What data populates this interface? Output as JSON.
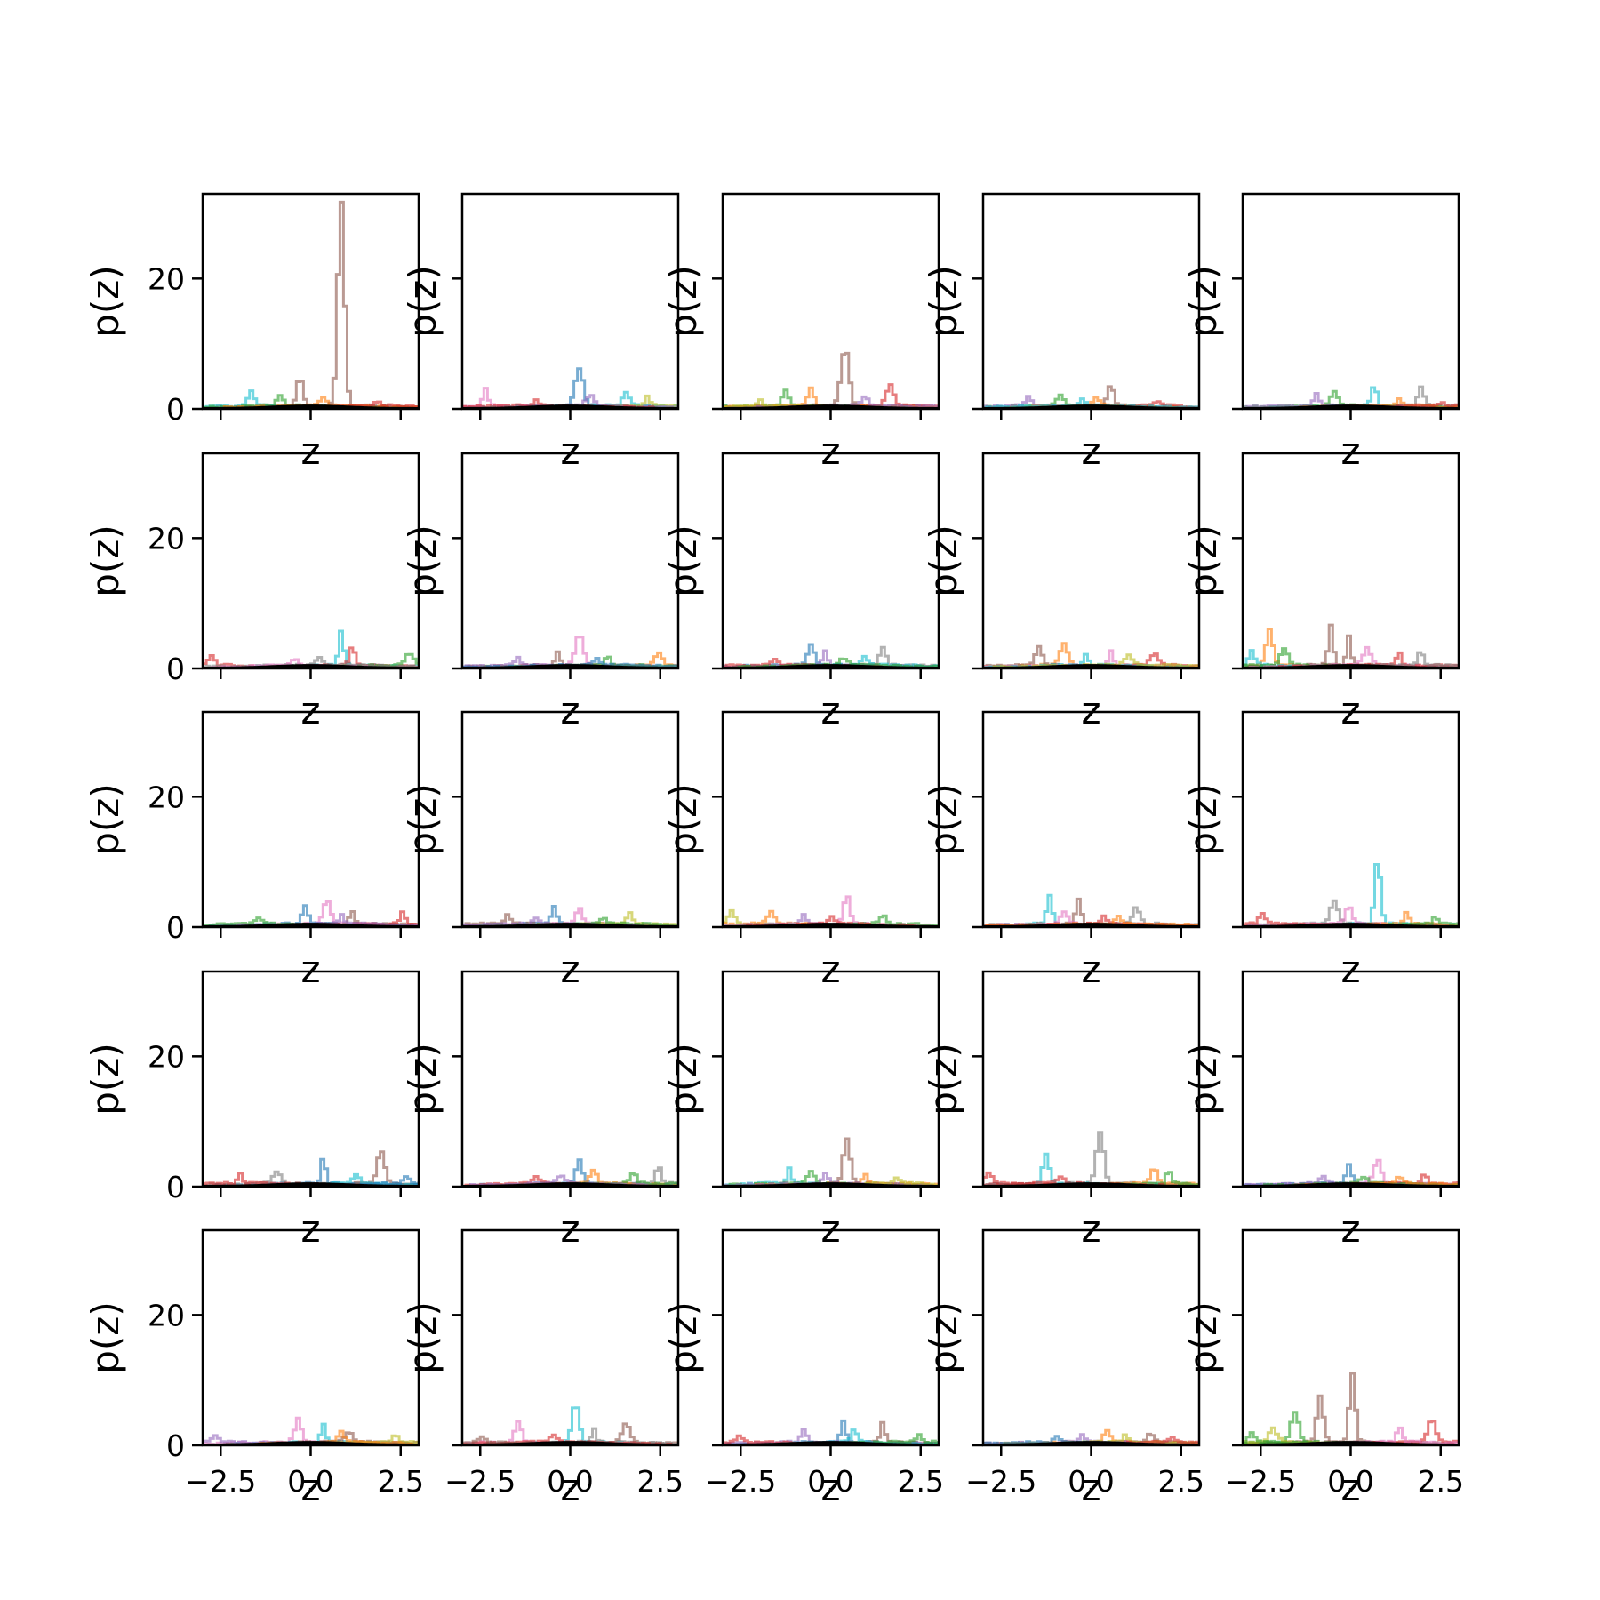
{
  "figure": {
    "rows": 5,
    "cols": 5,
    "background": "#ffffff"
  },
  "axes_style": {
    "spine_color": "#000000",
    "pdf_color": "#000000",
    "series_colors": [
      "#1f77b4",
      "#ff7f0e",
      "#2ca02c",
      "#d62728",
      "#9467bd",
      "#8c564b",
      "#e377c2",
      "#7f7f7f",
      "#bcbd22",
      "#17becf"
    ]
  },
  "chart_data": {
    "type": "line",
    "description_kind": "grid of histogram step plots",
    "xlabel": "z",
    "ylabel": "p(z)",
    "xlim": [
      -3.0,
      3.0
    ],
    "ylim": [
      0,
      33
    ],
    "xticks": [
      -2.5,
      0.0,
      2.5
    ],
    "xtick_labels": [
      "−2.5",
      "0.0",
      "2.5"
    ],
    "yticks": [
      0,
      20
    ],
    "ytick_labels": [
      "0",
      "20"
    ],
    "grid": false,
    "reference_curve": {
      "type": "standard_normal_pdf",
      "color": "#000000"
    },
    "panels": [
      {
        "peaks": [
          {
            "x": 0.8,
            "h": 31.5,
            "c": 5
          },
          {
            "x": -0.35,
            "h": 4.5,
            "c": 5
          },
          {
            "x": -1.7,
            "h": 2.2,
            "c": 9
          },
          {
            "x": -0.9,
            "h": 1.6,
            "c": 2
          },
          {
            "x": 0.3,
            "h": 1.2,
            "c": 1
          },
          {
            "x": 1.8,
            "h": 0.6,
            "c": 3
          }
        ]
      },
      {
        "peaks": [
          {
            "x": 0.2,
            "h": 5.8,
            "c": 0
          },
          {
            "x": -2.4,
            "h": 2.8,
            "c": 6
          },
          {
            "x": 1.5,
            "h": 2.0,
            "c": 9
          },
          {
            "x": 2.1,
            "h": 1.5,
            "c": 8
          },
          {
            "x": 0.5,
            "h": 1.6,
            "c": 4
          },
          {
            "x": -1.0,
            "h": 1.0,
            "c": 3
          }
        ]
      },
      {
        "peaks": [
          {
            "x": 0.35,
            "h": 8.8,
            "c": 5
          },
          {
            "x": 1.6,
            "h": 3.2,
            "c": 3
          },
          {
            "x": -1.3,
            "h": 2.3,
            "c": 2
          },
          {
            "x": -0.6,
            "h": 2.7,
            "c": 1
          },
          {
            "x": 0.9,
            "h": 1.5,
            "c": 4
          },
          {
            "x": -2.0,
            "h": 1.0,
            "c": 8
          }
        ]
      },
      {
        "peaks": [
          {
            "x": 0.5,
            "h": 3.0,
            "c": 5
          },
          {
            "x": -0.9,
            "h": 1.6,
            "c": 2
          },
          {
            "x": -1.8,
            "h": 1.4,
            "c": 4
          },
          {
            "x": 0.1,
            "h": 1.2,
            "c": 1
          },
          {
            "x": 1.8,
            "h": 0.8,
            "c": 3
          },
          {
            "x": -0.3,
            "h": 1.0,
            "c": 9
          }
        ]
      },
      {
        "peaks": [
          {
            "x": 0.6,
            "h": 3.2,
            "c": 9
          },
          {
            "x": 1.9,
            "h": 3.0,
            "c": 7
          },
          {
            "x": -0.5,
            "h": 2.0,
            "c": 2
          },
          {
            "x": -1.0,
            "h": 1.8,
            "c": 4
          },
          {
            "x": 1.3,
            "h": 1.0,
            "c": 1
          },
          {
            "x": 2.5,
            "h": 0.6,
            "c": 3
          }
        ]
      },
      {
        "peaks": [
          {
            "x": 0.8,
            "h": 5.2,
            "c": 9
          },
          {
            "x": 1.1,
            "h": 3.0,
            "c": 3
          },
          {
            "x": -2.8,
            "h": 1.6,
            "c": 3
          },
          {
            "x": 2.7,
            "h": 1.8,
            "c": 2
          },
          {
            "x": 0.2,
            "h": 1.3,
            "c": 7
          },
          {
            "x": -0.5,
            "h": 1.0,
            "c": 6
          }
        ]
      },
      {
        "peaks": [
          {
            "x": 0.2,
            "h": 4.8,
            "c": 6
          },
          {
            "x": 2.4,
            "h": 1.8,
            "c": 1
          },
          {
            "x": -0.4,
            "h": 1.9,
            "c": 5
          },
          {
            "x": 1.0,
            "h": 1.5,
            "c": 2
          },
          {
            "x": -1.5,
            "h": 1.2,
            "c": 4
          },
          {
            "x": 0.7,
            "h": 1.0,
            "c": 0
          }
        ]
      },
      {
        "peaks": [
          {
            "x": -0.6,
            "h": 3.0,
            "c": 0
          },
          {
            "x": 1.4,
            "h": 2.8,
            "c": 7
          },
          {
            "x": -0.2,
            "h": 2.3,
            "c": 4
          },
          {
            "x": 0.9,
            "h": 1.5,
            "c": 9
          },
          {
            "x": -1.6,
            "h": 0.8,
            "c": 3
          },
          {
            "x": 0.3,
            "h": 1.0,
            "c": 2
          }
        ]
      },
      {
        "peaks": [
          {
            "x": -0.8,
            "h": 3.2,
            "c": 1
          },
          {
            "x": -1.5,
            "h": 2.8,
            "c": 5
          },
          {
            "x": 0.5,
            "h": 2.3,
            "c": 6
          },
          {
            "x": 1.7,
            "h": 1.8,
            "c": 3
          },
          {
            "x": -0.2,
            "h": 1.5,
            "c": 9
          },
          {
            "x": 1.0,
            "h": 1.4,
            "c": 8
          }
        ]
      },
      {
        "peaks": [
          {
            "x": -2.3,
            "h": 5.5,
            "c": 1
          },
          {
            "x": -0.6,
            "h": 6.0,
            "c": 5
          },
          {
            "x": -0.1,
            "h": 4.5,
            "c": 5
          },
          {
            "x": -2.8,
            "h": 2.2,
            "c": 9
          },
          {
            "x": -1.9,
            "h": 2.5,
            "c": 2
          },
          {
            "x": 0.4,
            "h": 2.6,
            "c": 6
          },
          {
            "x": 1.3,
            "h": 2.0,
            "c": 3
          },
          {
            "x": 1.9,
            "h": 2.2,
            "c": 7
          }
        ]
      },
      {
        "peaks": [
          {
            "x": 0.4,
            "h": 3.5,
            "c": 6
          },
          {
            "x": -0.2,
            "h": 2.8,
            "c": 0
          },
          {
            "x": 1.1,
            "h": 1.9,
            "c": 5
          },
          {
            "x": 2.5,
            "h": 1.8,
            "c": 3
          },
          {
            "x": -1.5,
            "h": 1.0,
            "c": 2
          },
          {
            "x": 0.8,
            "h": 1.3,
            "c": 4
          }
        ]
      },
      {
        "peaks": [
          {
            "x": -0.5,
            "h": 2.8,
            "c": 0
          },
          {
            "x": 0.2,
            "h": 2.6,
            "c": 6
          },
          {
            "x": 1.6,
            "h": 1.6,
            "c": 8
          },
          {
            "x": -1.8,
            "h": 1.4,
            "c": 5
          },
          {
            "x": 0.9,
            "h": 1.0,
            "c": 2
          },
          {
            "x": -1.0,
            "h": 1.0,
            "c": 4
          }
        ]
      },
      {
        "peaks": [
          {
            "x": 0.4,
            "h": 4.5,
            "c": 6
          },
          {
            "x": -2.8,
            "h": 2.0,
            "c": 8
          },
          {
            "x": -1.7,
            "h": 1.8,
            "c": 1
          },
          {
            "x": -0.8,
            "h": 1.5,
            "c": 4
          },
          {
            "x": 1.4,
            "h": 1.3,
            "c": 2
          },
          {
            "x": 0.0,
            "h": 1.0,
            "c": 3
          }
        ]
      },
      {
        "peaks": [
          {
            "x": -1.2,
            "h": 4.5,
            "c": 9
          },
          {
            "x": -0.4,
            "h": 3.8,
            "c": 5
          },
          {
            "x": 1.2,
            "h": 2.4,
            "c": 7
          },
          {
            "x": -0.8,
            "h": 2.0,
            "c": 6
          },
          {
            "x": 0.3,
            "h": 1.2,
            "c": 3
          },
          {
            "x": 0.7,
            "h": 1.3,
            "c": 1
          }
        ]
      },
      {
        "peaks": [
          {
            "x": 0.7,
            "h": 10.0,
            "c": 9
          },
          {
            "x": -0.5,
            "h": 3.5,
            "c": 7
          },
          {
            "x": -0.1,
            "h": 2.5,
            "c": 6
          },
          {
            "x": -2.5,
            "h": 1.5,
            "c": 3
          },
          {
            "x": 1.5,
            "h": 1.6,
            "c": 1
          },
          {
            "x": 2.3,
            "h": 1.0,
            "c": 2
          }
        ]
      },
      {
        "peaks": [
          {
            "x": 0.3,
            "h": 4.2,
            "c": 0
          },
          {
            "x": 1.9,
            "h": 5.0,
            "c": 5
          },
          {
            "x": -1.0,
            "h": 1.8,
            "c": 7
          },
          {
            "x": -2.0,
            "h": 1.4,
            "c": 3
          },
          {
            "x": 1.2,
            "h": 1.3,
            "c": 9
          },
          {
            "x": 2.6,
            "h": 1.0,
            "c": 0
          }
        ]
      },
      {
        "peaks": [
          {
            "x": 0.2,
            "h": 3.5,
            "c": 0
          },
          {
            "x": 2.4,
            "h": 3.0,
            "c": 7
          },
          {
            "x": 0.6,
            "h": 2.0,
            "c": 1
          },
          {
            "x": 1.7,
            "h": 1.5,
            "c": 2
          },
          {
            "x": -1.0,
            "h": 1.0,
            "c": 3
          },
          {
            "x": -0.3,
            "h": 1.2,
            "c": 4
          }
        ]
      },
      {
        "peaks": [
          {
            "x": 0.4,
            "h": 7.0,
            "c": 5
          },
          {
            "x": -1.2,
            "h": 2.2,
            "c": 9
          },
          {
            "x": -0.6,
            "h": 1.8,
            "c": 2
          },
          {
            "x": 0.9,
            "h": 1.3,
            "c": 1
          },
          {
            "x": -0.2,
            "h": 1.5,
            "c": 4
          },
          {
            "x": 1.8,
            "h": 0.8,
            "c": 8
          }
        ]
      },
      {
        "peaks": [
          {
            "x": 0.2,
            "h": 7.8,
            "c": 7
          },
          {
            "x": -1.3,
            "h": 4.5,
            "c": 9
          },
          {
            "x": 1.7,
            "h": 2.5,
            "c": 1
          },
          {
            "x": 2.1,
            "h": 2.0,
            "c": 2
          },
          {
            "x": -2.9,
            "h": 1.5,
            "c": 3
          },
          {
            "x": -0.9,
            "h": 1.0,
            "c": 3
          }
        ]
      },
      {
        "peaks": [
          {
            "x": 0.7,
            "h": 3.5,
            "c": 6
          },
          {
            "x": -0.1,
            "h": 2.8,
            "c": 0
          },
          {
            "x": 2.0,
            "h": 1.5,
            "c": 3
          },
          {
            "x": -0.8,
            "h": 1.2,
            "c": 4
          },
          {
            "x": 0.3,
            "h": 1.0,
            "c": 2
          },
          {
            "x": 1.3,
            "h": 0.8,
            "c": 1
          }
        ]
      },
      {
        "peaks": [
          {
            "x": -0.4,
            "h": 3.5,
            "c": 6
          },
          {
            "x": 0.3,
            "h": 2.8,
            "c": 9
          },
          {
            "x": 1.0,
            "h": 1.6,
            "c": 5
          },
          {
            "x": 2.3,
            "h": 1.2,
            "c": 8
          },
          {
            "x": -2.7,
            "h": 1.0,
            "c": 4
          },
          {
            "x": 0.8,
            "h": 1.5,
            "c": 1
          }
        ]
      },
      {
        "peaks": [
          {
            "x": 0.1,
            "h": 6.0,
            "c": 9
          },
          {
            "x": -1.5,
            "h": 3.2,
            "c": 6
          },
          {
            "x": 1.5,
            "h": 2.8,
            "c": 5
          },
          {
            "x": 0.6,
            "h": 2.0,
            "c": 7
          },
          {
            "x": -0.5,
            "h": 1.2,
            "c": 3
          },
          {
            "x": -2.5,
            "h": 0.8,
            "c": 5
          }
        ]
      },
      {
        "peaks": [
          {
            "x": 0.3,
            "h": 3.2,
            "c": 0
          },
          {
            "x": 1.4,
            "h": 3.2,
            "c": 5
          },
          {
            "x": -0.8,
            "h": 2.0,
            "c": 4
          },
          {
            "x": 0.6,
            "h": 1.8,
            "c": 9
          },
          {
            "x": -2.6,
            "h": 1.0,
            "c": 3
          },
          {
            "x": 2.4,
            "h": 1.0,
            "c": 2
          }
        ]
      },
      {
        "peaks": [
          {
            "x": 0.4,
            "h": 1.6,
            "c": 1
          },
          {
            "x": 1.6,
            "h": 1.5,
            "c": 5
          },
          {
            "x": -0.3,
            "h": 1.2,
            "c": 4
          },
          {
            "x": 0.9,
            "h": 1.0,
            "c": 8
          },
          {
            "x": -1.0,
            "h": 0.8,
            "c": 0
          },
          {
            "x": 2.2,
            "h": 0.6,
            "c": 3
          }
        ]
      },
      {
        "peaks": [
          {
            "x": 0.0,
            "h": 10.5,
            "c": 5
          },
          {
            "x": -0.9,
            "h": 7.0,
            "c": 5
          },
          {
            "x": -1.6,
            "h": 4.5,
            "c": 2
          },
          {
            "x": 2.2,
            "h": 3.5,
            "c": 3
          },
          {
            "x": -2.2,
            "h": 2.0,
            "c": 8
          },
          {
            "x": 1.3,
            "h": 2.2,
            "c": 6
          },
          {
            "x": -2.8,
            "h": 1.5,
            "c": 2
          }
        ]
      }
    ]
  }
}
